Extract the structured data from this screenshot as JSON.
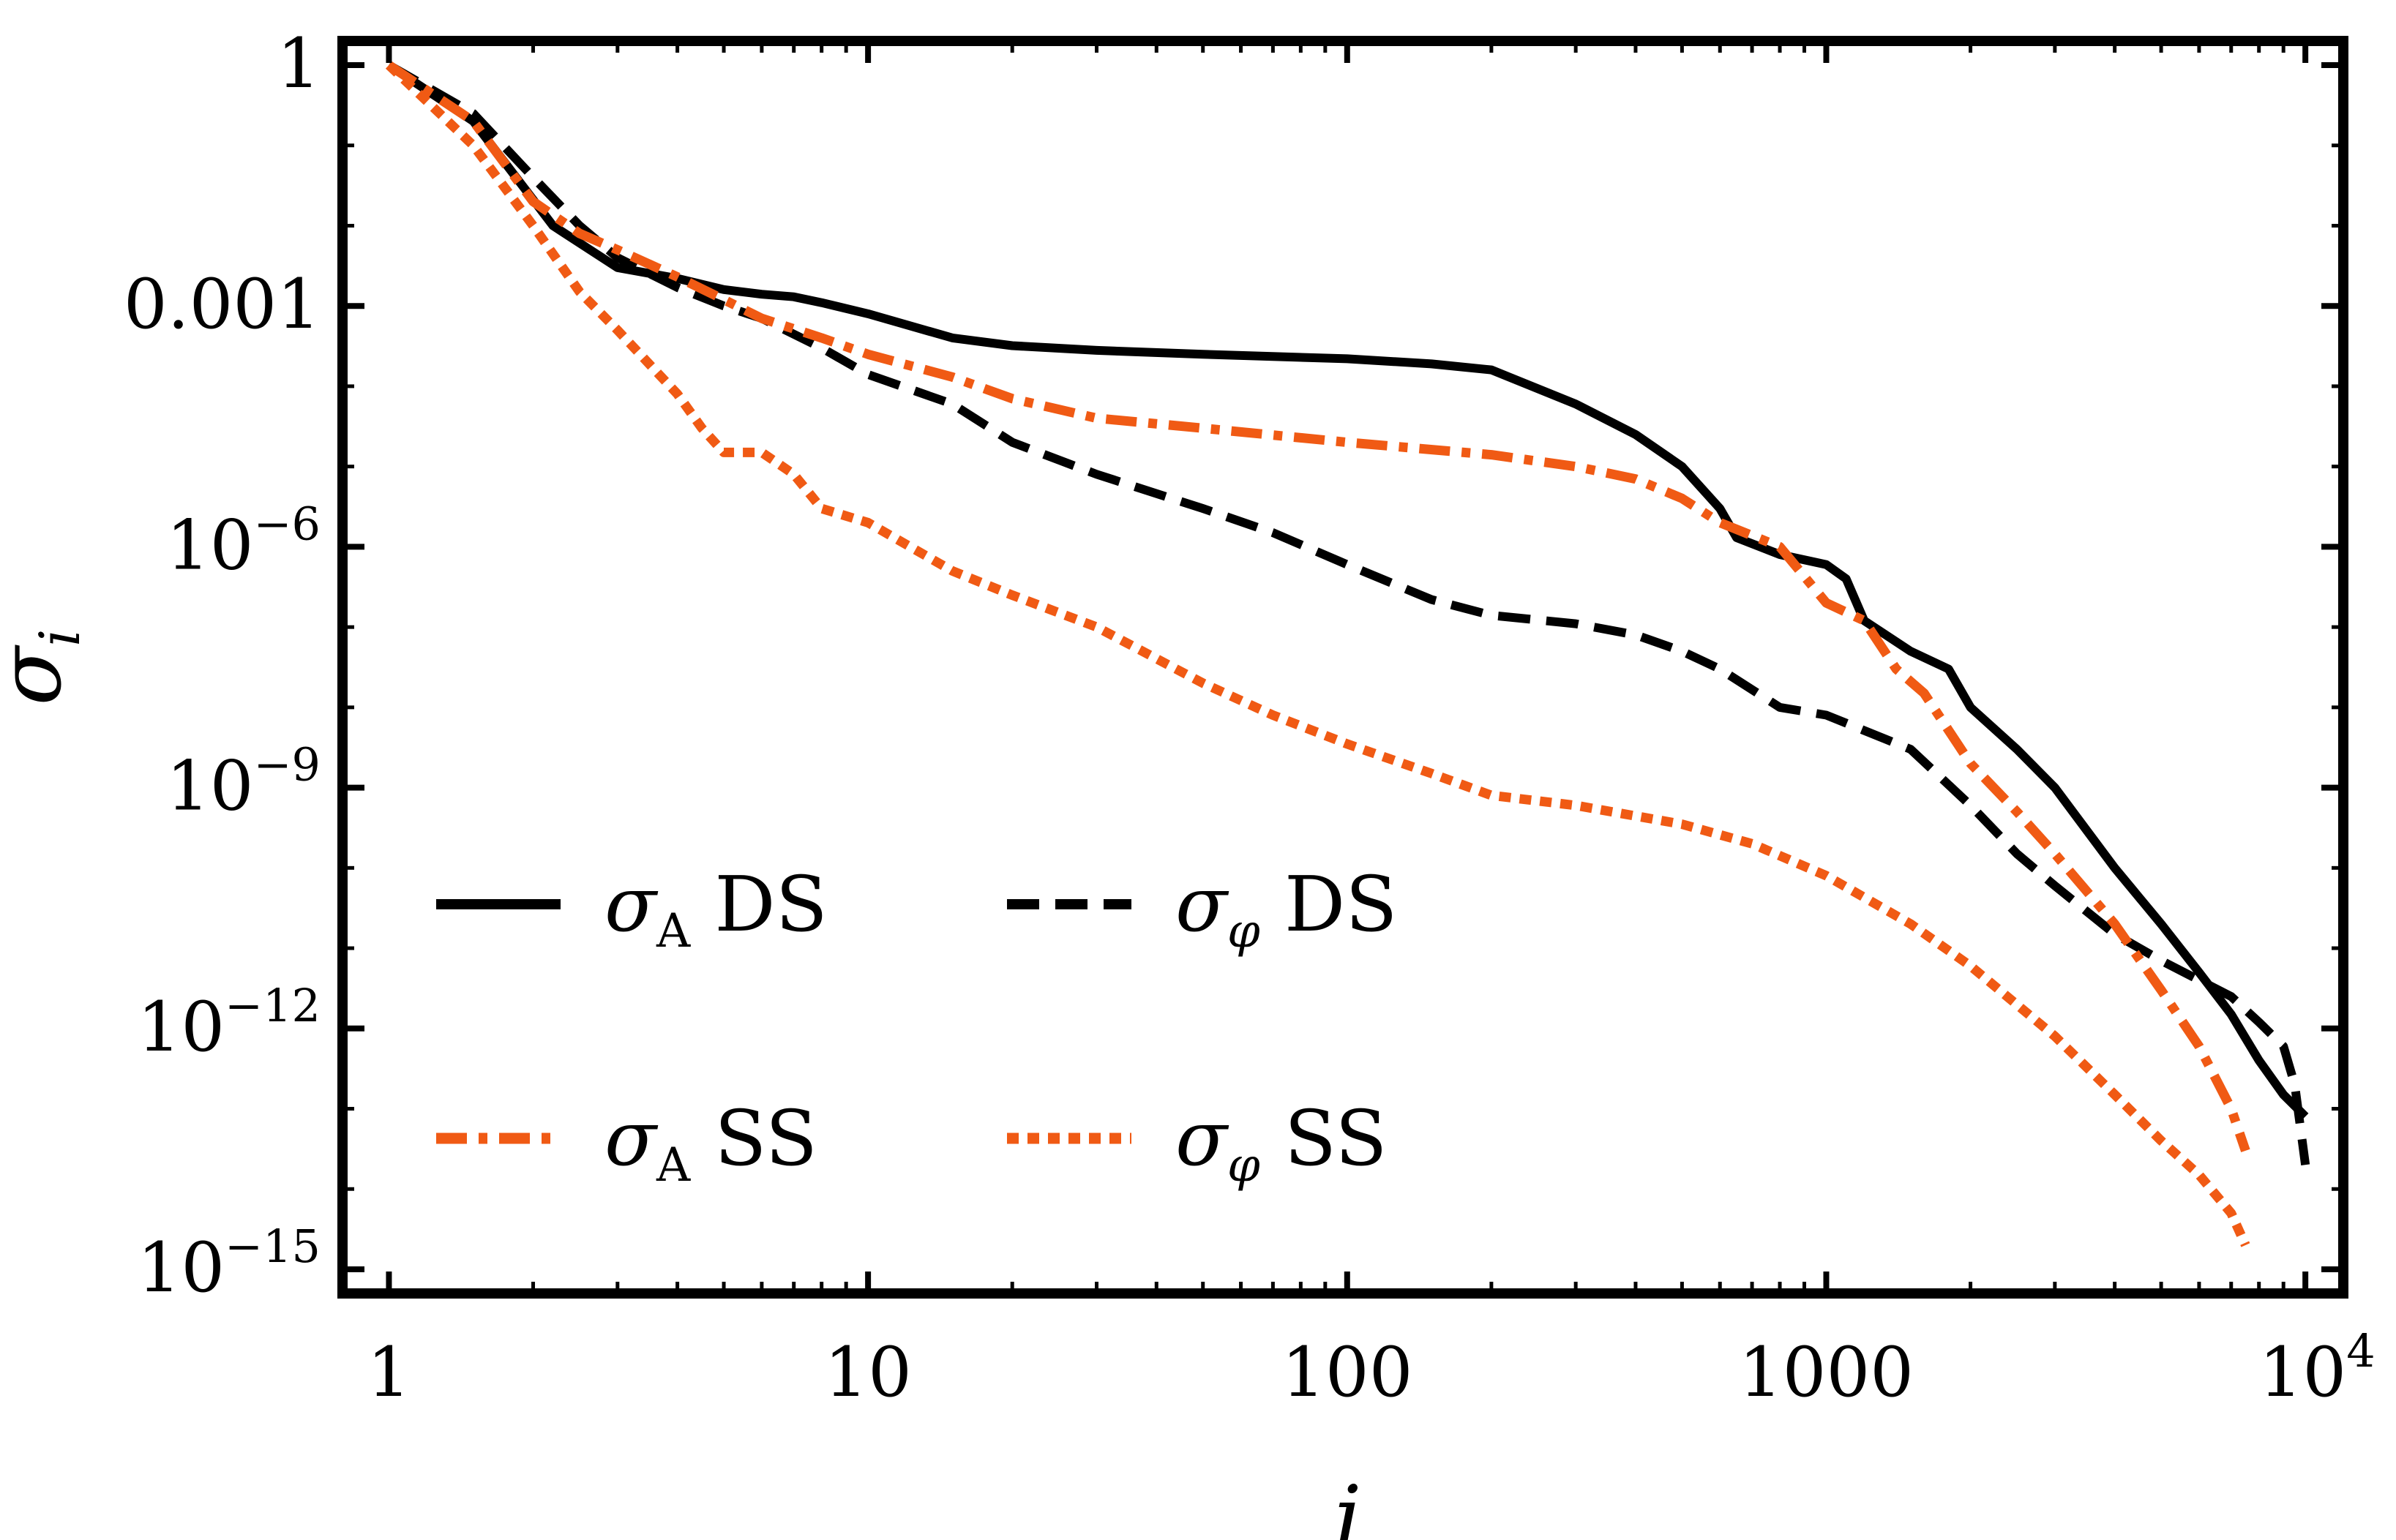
{
  "chart_data": {
    "type": "line",
    "title": "",
    "xlabel": "i",
    "ylabel": "σ",
    "ylabel_sub": "i",
    "xscale": "log",
    "yscale": "log",
    "xlim": [
      0.8,
      12000
    ],
    "ylim": [
      5e-16,
      2
    ],
    "grid": false,
    "legend_position": "lower-left",
    "x_ticks": [
      {
        "value": 1,
        "label": "1"
      },
      {
        "value": 10,
        "label": "10"
      },
      {
        "value": 100,
        "label": "100"
      },
      {
        "value": 1000,
        "label": "1000"
      },
      {
        "value": 10000,
        "label": "10",
        "sup": "4"
      }
    ],
    "y_ticks": [
      {
        "value": 1,
        "label": "1",
        "sup": ""
      },
      {
        "value": 0.001,
        "label": "0.001",
        "sup": ""
      },
      {
        "value": 1e-06,
        "label": "10",
        "sup": "−6"
      },
      {
        "value": 1e-09,
        "label": "10",
        "sup": "−9"
      },
      {
        "value": 1e-12,
        "label": "10",
        "sup": "−12"
      },
      {
        "value": 1e-15,
        "label": "10",
        "sup": "−15"
      }
    ],
    "series": [
      {
        "name": "σA DS",
        "sym": "σ",
        "sub": "A",
        "suffix": " DS",
        "color": "#000000",
        "dash": "solid",
        "points": [
          [
            1,
            1
          ],
          [
            1.5,
            0.2
          ],
          [
            2.2,
            0.01
          ],
          [
            3,
            0.003
          ],
          [
            4,
            0.0022
          ],
          [
            5,
            0.0016
          ],
          [
            6,
            0.0014
          ],
          [
            7,
            0.0013
          ],
          [
            8,
            0.0011
          ],
          [
            10,
            0.0008
          ],
          [
            15,
            0.0004
          ],
          [
            20,
            0.00032
          ],
          [
            30,
            0.00028
          ],
          [
            50,
            0.00025
          ],
          [
            100,
            0.00022
          ],
          [
            150,
            0.00019
          ],
          [
            200,
            0.00016
          ],
          [
            300,
            6e-05
          ],
          [
            400,
            2.5e-05
          ],
          [
            500,
            1e-05
          ],
          [
            600,
            3e-06
          ],
          [
            650,
            1.3e-06
          ],
          [
            800,
            8e-07
          ],
          [
            1000,
            6e-07
          ],
          [
            1100,
            4e-07
          ],
          [
            1200,
            1.2e-07
          ],
          [
            1500,
            5e-08
          ],
          [
            1800,
            3e-08
          ],
          [
            2000,
            1e-08
          ],
          [
            2500,
            3e-09
          ],
          [
            3000,
            1e-09
          ],
          [
            4000,
            1e-10
          ],
          [
            5000,
            2e-11
          ],
          [
            6000,
            5e-12
          ],
          [
            7000,
            1.5e-12
          ],
          [
            8000,
            4e-13
          ],
          [
            9000,
            1.5e-13
          ],
          [
            10000,
            8e-14
          ]
        ]
      },
      {
        "name": "σφ DS",
        "sym": "σ",
        "sub": "φ",
        "suffix": " DS",
        "color": "#000000",
        "dash": "dash",
        "points": [
          [
            1,
            1
          ],
          [
            1.5,
            0.25
          ],
          [
            2,
            0.04
          ],
          [
            2.5,
            0.01
          ],
          [
            3,
            0.004
          ],
          [
            4,
            0.0017
          ],
          [
            5,
            0.001
          ],
          [
            6,
            0.0007
          ],
          [
            8,
            0.0003
          ],
          [
            10,
            0.00014
          ],
          [
            15,
            6e-05
          ],
          [
            20,
            2e-05
          ],
          [
            30,
            8e-06
          ],
          [
            50,
            3e-06
          ],
          [
            70,
            1.5e-06
          ],
          [
            100,
            6e-07
          ],
          [
            150,
            2.2e-07
          ],
          [
            200,
            1.4e-07
          ],
          [
            300,
            1.1e-07
          ],
          [
            400,
            8e-08
          ],
          [
            500,
            5e-08
          ],
          [
            600,
            3e-08
          ],
          [
            800,
            1e-08
          ],
          [
            1000,
            8e-09
          ],
          [
            1500,
            3e-09
          ],
          [
            2000,
            6e-10
          ],
          [
            2500,
            1.5e-10
          ],
          [
            3000,
            6e-11
          ],
          [
            4000,
            1.5e-11
          ],
          [
            5000,
            7e-12
          ],
          [
            6000,
            4e-12
          ],
          [
            7000,
            2.5e-12
          ],
          [
            8000,
            1.2e-12
          ],
          [
            9000,
            6e-13
          ],
          [
            9500,
            2e-13
          ],
          [
            10000,
            2e-14
          ]
        ]
      },
      {
        "name": "σA SS",
        "sym": "σ",
        "sub": "A",
        "suffix": " SS",
        "color": "#f05a14",
        "dash": "dashdot",
        "points": [
          [
            1,
            1
          ],
          [
            1.5,
            0.2
          ],
          [
            2,
            0.02
          ],
          [
            2.5,
            0.008
          ],
          [
            3,
            0.005
          ],
          [
            4,
            0.0023
          ],
          [
            5,
            0.0012
          ],
          [
            6,
            0.0007
          ],
          [
            8,
            0.0004
          ],
          [
            10,
            0.00025
          ],
          [
            15,
            0.00013
          ],
          [
            20,
            7e-05
          ],
          [
            30,
            4e-05
          ],
          [
            50,
            3e-05
          ],
          [
            100,
            2e-05
          ],
          [
            200,
            1.4e-05
          ],
          [
            300,
            1e-05
          ],
          [
            400,
            7e-06
          ],
          [
            500,
            4e-06
          ],
          [
            600,
            2e-06
          ],
          [
            800,
            1e-06
          ],
          [
            1000,
            2e-07
          ],
          [
            1200,
            1.2e-07
          ],
          [
            1400,
            3e-08
          ],
          [
            1600,
            1.5e-08
          ],
          [
            2000,
            2e-09
          ],
          [
            2500,
            5e-10
          ],
          [
            3000,
            1.5e-10
          ],
          [
            4000,
            2e-11
          ],
          [
            5000,
            3e-12
          ],
          [
            6000,
            6e-13
          ],
          [
            7000,
            1e-13
          ],
          [
            7500,
            3e-14
          ]
        ]
      },
      {
        "name": "σφ SS",
        "sym": "σ",
        "sub": "φ",
        "suffix": " SS",
        "color": "#f05a14",
        "dash": "dot",
        "points": [
          [
            1,
            1
          ],
          [
            1.5,
            0.1
          ],
          [
            2,
            0.01
          ],
          [
            2.5,
            0.0015
          ],
          [
            3,
            0.0005
          ],
          [
            4,
            8e-05
          ],
          [
            4.5,
            3e-05
          ],
          [
            5,
            1.5e-05
          ],
          [
            6,
            1.5e-05
          ],
          [
            7,
            8e-06
          ],
          [
            8,
            3e-06
          ],
          [
            10,
            2e-06
          ],
          [
            15,
            5e-07
          ],
          [
            20,
            2.5e-07
          ],
          [
            30,
            1e-07
          ],
          [
            50,
            2e-08
          ],
          [
            70,
            8e-09
          ],
          [
            100,
            3.5e-09
          ],
          [
            150,
            1.5e-09
          ],
          [
            200,
            8e-10
          ],
          [
            300,
            6e-10
          ],
          [
            500,
            3.5e-10
          ],
          [
            700,
            2e-10
          ],
          [
            1000,
            8e-11
          ],
          [
            1500,
            2e-11
          ],
          [
            2000,
            6e-12
          ],
          [
            3000,
            8e-13
          ],
          [
            4000,
            1.5e-13
          ],
          [
            5000,
            4e-14
          ],
          [
            6000,
            1.5e-14
          ],
          [
            7000,
            5e-15
          ],
          [
            7500,
            2e-15
          ]
        ]
      }
    ]
  }
}
